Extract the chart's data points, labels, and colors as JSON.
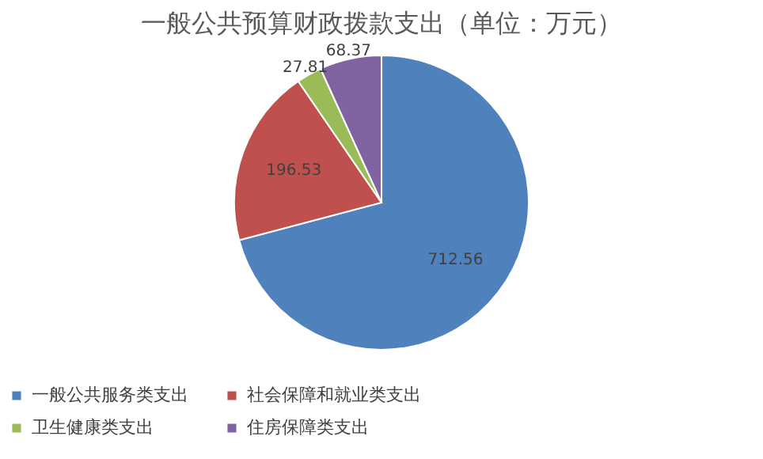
{
  "chart_data": {
    "type": "pie",
    "title": "一般公共预算财政拨款支出（单位：万元）",
    "categories": [
      "一般公共服务类支出",
      "社会保障和就业类支出",
      "卫生健康类支出",
      "住房保障类支出"
    ],
    "values": [
      712.56,
      196.53,
      27.81,
      68.37
    ],
    "colors": [
      "#4f81bd",
      "#c0504d",
      "#9bbb59",
      "#8064a2"
    ],
    "data_labels": true,
    "legend": "bottom"
  }
}
